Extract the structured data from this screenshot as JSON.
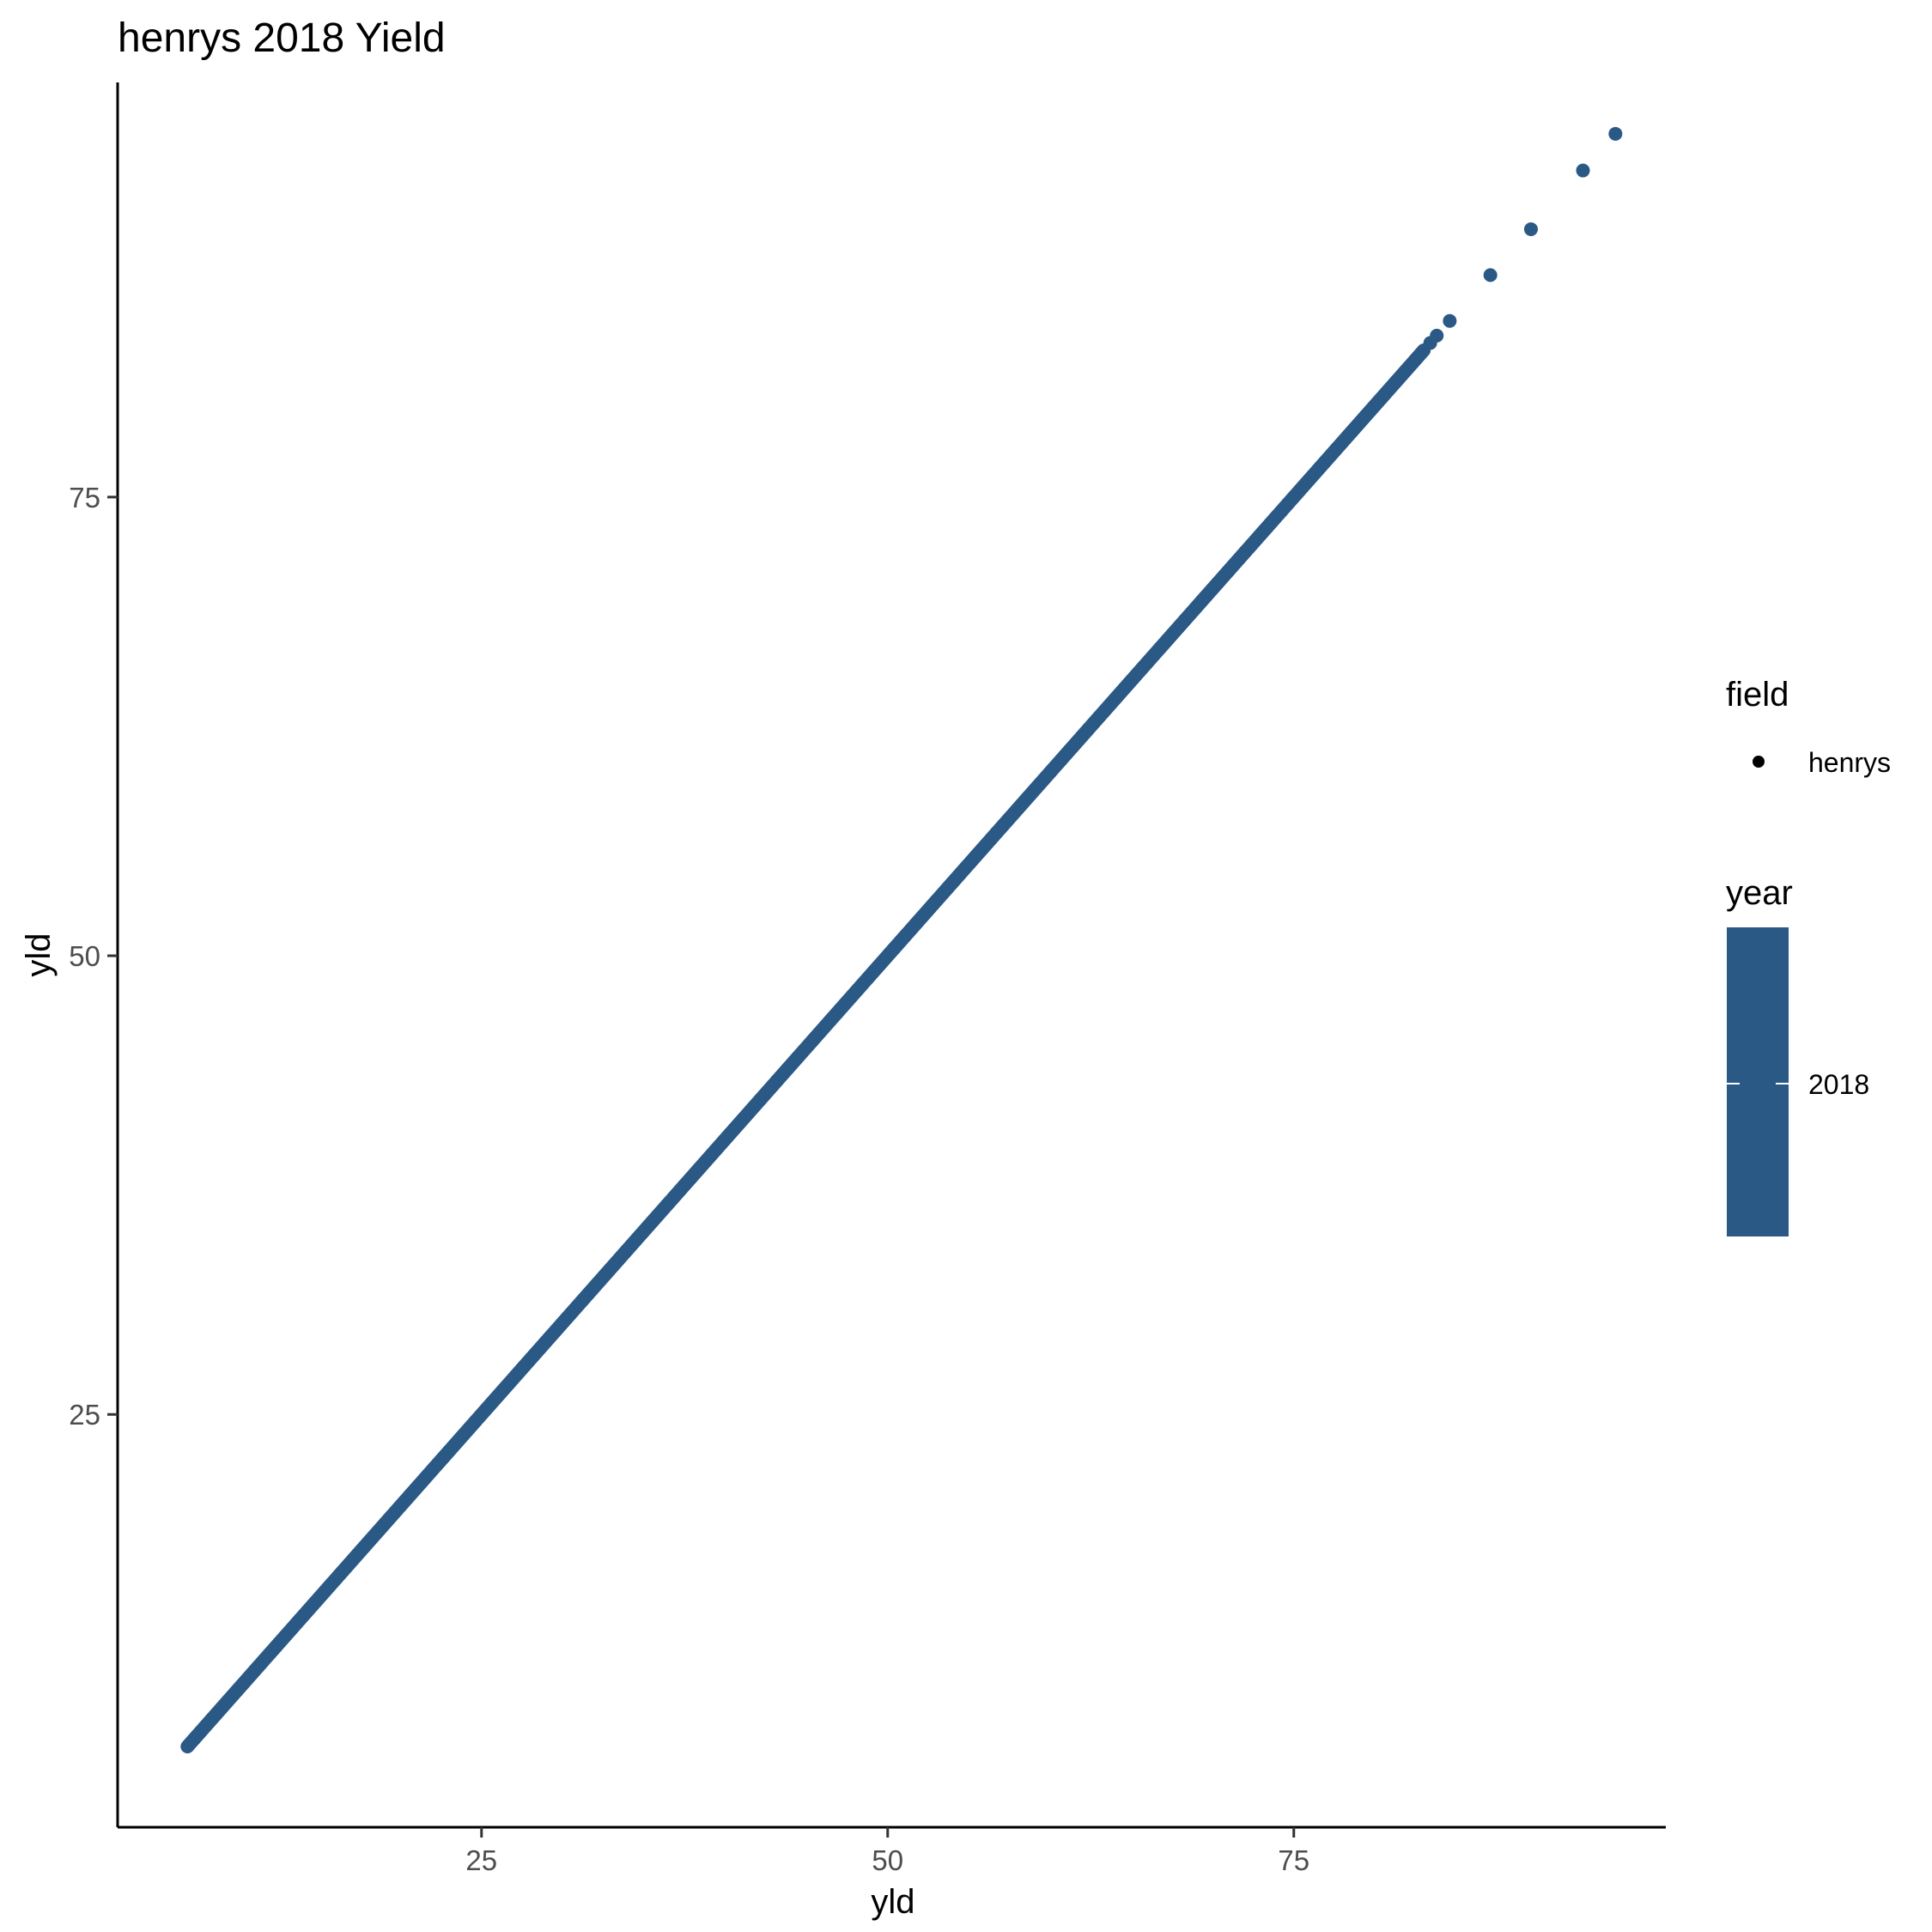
{
  "chart_data": {
    "type": "scatter",
    "title": "henrys 2018 Yield",
    "xlabel": "yld",
    "ylabel": "yld",
    "xlim": [
      2.6,
      97.9
    ],
    "ylim": [
      2.5,
      97.6
    ],
    "x_ticks": [
      "25",
      "50",
      "75"
    ],
    "y_ticks": [
      "25",
      "50",
      "75"
    ],
    "x_tick_values": [
      25,
      50,
      75
    ],
    "y_tick_values": [
      25,
      50,
      75
    ],
    "grid": false,
    "legend_position": "right",
    "point_color": "#2B5986",
    "series": [
      {
        "name": "henrys",
        "line_from": [
          6.9,
          6.9
        ],
        "line_to": [
          83.0,
          83.0
        ],
        "outliers": [
          {
            "x": 83.4,
            "y": 83.4
          },
          {
            "x": 83.8,
            "y": 83.8
          },
          {
            "x": 84.6,
            "y": 84.6
          },
          {
            "x": 87.1,
            "y": 87.1
          },
          {
            "x": 89.6,
            "y": 89.6
          },
          {
            "x": 92.8,
            "y": 92.8
          },
          {
            "x": 94.8,
            "y": 94.8
          }
        ]
      }
    ],
    "legend": {
      "shape": {
        "title": "field",
        "items": [
          "henrys"
        ]
      },
      "color": {
        "title": "year",
        "items": [
          "2018"
        ],
        "color": "#2B5986"
      }
    }
  }
}
